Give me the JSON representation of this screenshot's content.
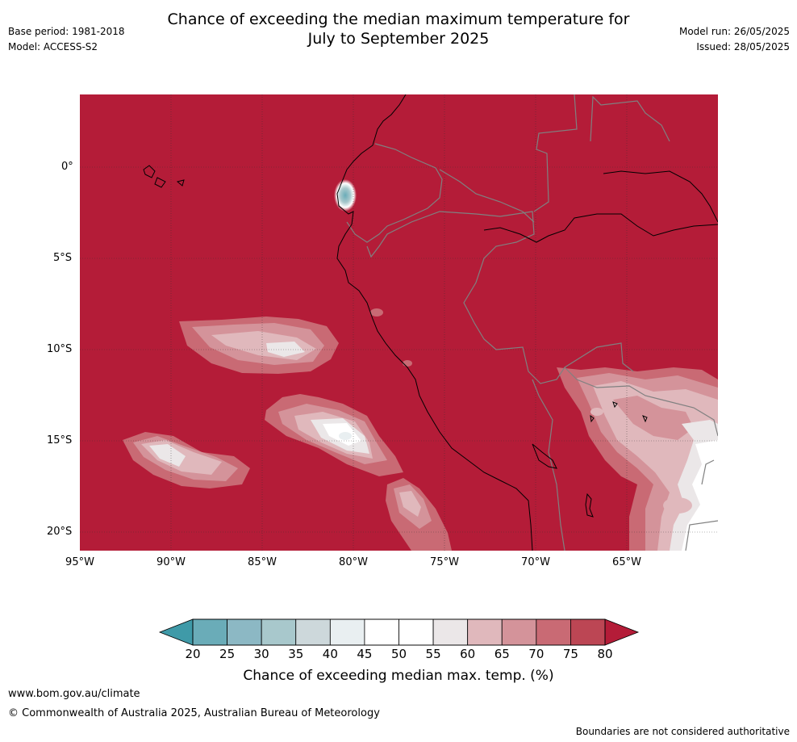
{
  "header": {
    "title_line1": "Chance of exceeding the median maximum temperature for",
    "title_line2": "July to September 2025",
    "base_period": "Base period: 1981-2018",
    "model": "Model: ACCESS-S2",
    "model_run": "Model run: 26/05/2025",
    "issued": "Issued: 28/05/2025"
  },
  "map": {
    "lat_labels": [
      "0°",
      "5°S",
      "10°S",
      "15°S",
      "20°S"
    ],
    "lon_labels": [
      "95°W",
      "90°W",
      "85°W",
      "80°W",
      "75°W",
      "70°W",
      "65°W"
    ],
    "base_color": "#b41c38",
    "coast_color": "#000000",
    "border_color": "#808080"
  },
  "colorbar": {
    "ticks": [
      "20",
      "25",
      "30",
      "35",
      "40",
      "45",
      "50",
      "55",
      "60",
      "65",
      "70",
      "75",
      "80"
    ],
    "colors": [
      "#6aacb8",
      "#8cb8c4",
      "#a8c8cc",
      "#cdd8db",
      "#e9eff1",
      "#ffffff",
      "#ffffff",
      "#ebe7e8",
      "#e0b8bc",
      "#d4939a",
      "#c96a74",
      "#bc4654"
    ],
    "low_color": "#3f9aa8",
    "high_color": "#b41c38",
    "label": "Chance of exceeding median max. temp. (%)"
  },
  "footer": {
    "url": "www.bom.gov.au/climate",
    "copyright": "© Commonwealth of Australia 2025, Australian Bureau of Meteorology",
    "disclaimer": "Boundaries are not considered authoritative"
  }
}
